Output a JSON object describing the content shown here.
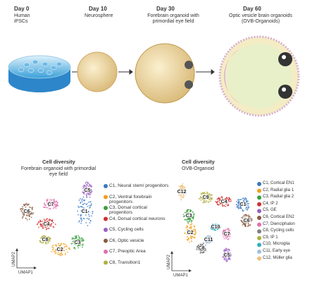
{
  "timeline": {
    "stages": [
      {
        "day": "Day 0",
        "label": "Human iPSCs"
      },
      {
        "day": "Day 10",
        "label": "Neurosphere"
      },
      {
        "day": "Day 30",
        "label": "Forebrain organoid with primordial eye field"
      },
      {
        "day": "Day 60",
        "label": "Optic vesicle brain organoids (OVB-Organoids)"
      }
    ]
  },
  "panels": [
    {
      "title": "Cell diversity",
      "subtitle": "Forebrain organoid with primordial eye field",
      "x_axis": "UMAP1",
      "y_axis": "UMAP2",
      "clusters": [
        {
          "label": "C1",
          "legend": "C1, Neural stem/ progenitors",
          "color": "#3a78c2"
        },
        {
          "label": "C2",
          "legend": "C2, Ventral forebrain progenitors",
          "color": "#f0a020"
        },
        {
          "label": "C3",
          "legend": "C3, Dorsal cortical progenitors",
          "color": "#3aa040"
        },
        {
          "label": "C4",
          "legend": "C4, Dorsal cortical neurons",
          "color": "#d03030"
        },
        {
          "label": "C5",
          "legend": "C5, Cycling cells",
          "color": "#9a60c0"
        },
        {
          "label": "C6",
          "legend": "C6, Optic vesicle",
          "color": "#8a5a40"
        },
        {
          "label": "C7",
          "legend": "C7, Preoptic Area",
          "color": "#e070b0"
        },
        {
          "label": "C8",
          "legend": "C8, Transition1",
          "color": "#b0b040"
        }
      ]
    },
    {
      "title": "Cell diversity",
      "subtitle": "OVB-Organoid",
      "x_axis": "UMAP1",
      "y_axis": "UMAP2",
      "clusters": [
        {
          "label": "C1",
          "legend": "C1, Cortical EN1",
          "color": "#3a78c2"
        },
        {
          "label": "C2",
          "legend": "C2, Radial glia 1",
          "color": "#f0a020"
        },
        {
          "label": "C3",
          "legend": "C3, Radial glia 2",
          "color": "#3aa040"
        },
        {
          "label": "C4",
          "legend": "C4, IP 2",
          "color": "#d03030"
        },
        {
          "label": "C5",
          "legend": "C5, GE",
          "color": "#9a60c0"
        },
        {
          "label": "C6",
          "legend": "C6, Cortical EN2",
          "color": "#8a5a40"
        },
        {
          "label": "C7",
          "legend": "C7, Dienciphalon",
          "color": "#e070b0"
        },
        {
          "label": "C8",
          "legend": "C8, Cycling cells",
          "color": "#808080"
        },
        {
          "label": "C9",
          "legend": "C9, IP 1",
          "color": "#b0b040"
        },
        {
          "label": "C10",
          "legend": "C10, Microglia",
          "color": "#30b0c0"
        },
        {
          "label": "C11",
          "legend": "C11, Early eye",
          "color": "#a0c0e0"
        },
        {
          "label": "C12",
          "legend": "C12, Müller glia",
          "color": "#f0c080"
        }
      ]
    }
  ]
}
